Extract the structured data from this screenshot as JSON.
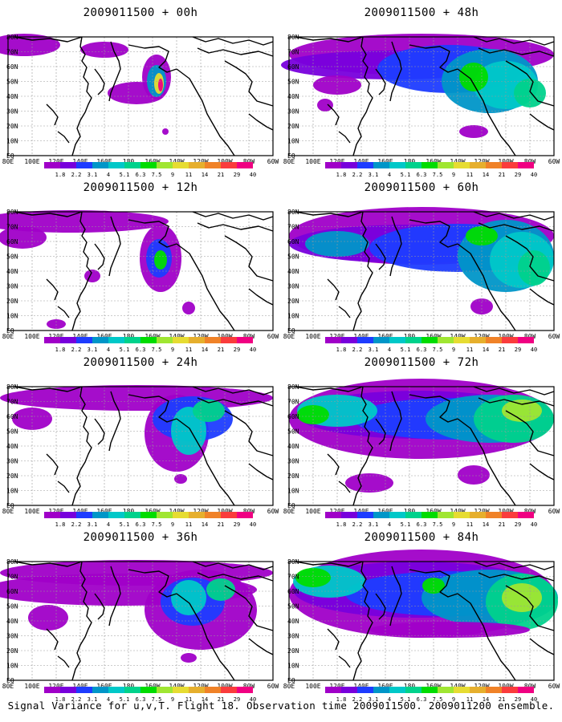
{
  "panels": [
    {
      "id": "p00",
      "title": "2009011500 + 00h",
      "level": 0
    },
    {
      "id": "p48",
      "title": "2009011500 + 48h",
      "level": 4
    },
    {
      "id": "p12",
      "title": "2009011500 + 12h",
      "level": 1
    },
    {
      "id": "p60",
      "title": "2009011500 + 60h",
      "level": 5
    },
    {
      "id": "p24",
      "title": "2009011500 + 24h",
      "level": 2
    },
    {
      "id": "p72",
      "title": "2009011500 + 72h",
      "level": 6
    },
    {
      "id": "p36",
      "title": "2009011500 + 36h",
      "level": 3
    },
    {
      "id": "p84",
      "title": "2009011500 + 84h",
      "level": 7
    }
  ],
  "lat_labels": [
    "80N",
    "70N",
    "60N",
    "50N",
    "40N",
    "30N",
    "20N",
    "10N",
    "EQ"
  ],
  "lon_labels": [
    "80E",
    "100E",
    "120E",
    "140E",
    "160E",
    "180",
    "160W",
    "140W",
    "120W",
    "100W",
    "80W",
    "60W"
  ],
  "colorbar": {
    "labels": [
      "1.8",
      "2.2",
      "3.1",
      "4",
      "5.1",
      "6.3",
      "7.5",
      "9",
      "11",
      "14",
      "21",
      "29",
      "40"
    ],
    "colors": [
      "#a000c8",
      "#7800dc",
      "#1e3cff",
      "#0096c8",
      "#00c8c8",
      "#00d28c",
      "#00dc00",
      "#a0e632",
      "#e6dc32",
      "#e6af2d",
      "#f08228",
      "#fa3c3c",
      "#f00082"
    ]
  },
  "footer": "Signal Variance for u,v,T. Flight 18. Observation time 2009011500. 2009011200 ensemble."
}
